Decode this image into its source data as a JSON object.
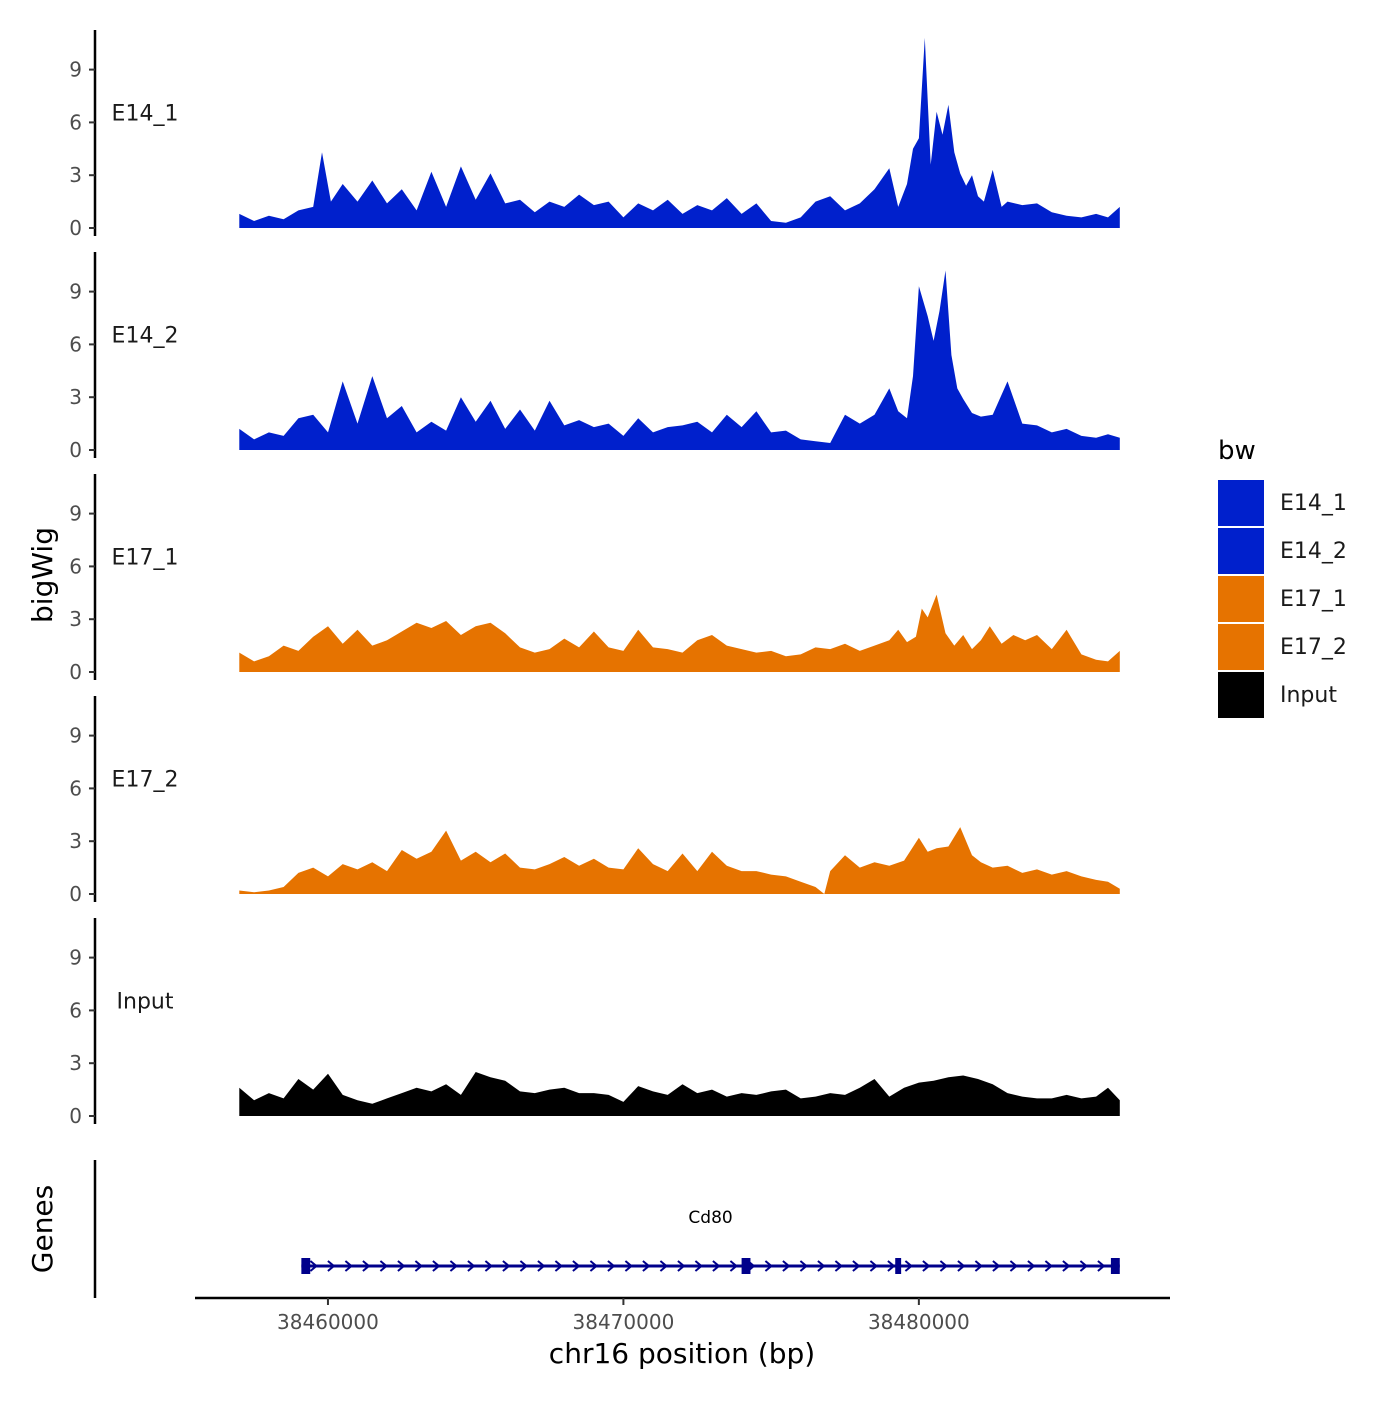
{
  "chart_data": {
    "type": "area",
    "chrom": "chr16",
    "xlabel": "chr16 position (bp)",
    "ylabel": "bigWig",
    "genes_label": "Genes",
    "xlim": [
      38455500,
      38488500
    ],
    "data_xrange": [
      38457000,
      38486800
    ],
    "ylim": [
      0,
      11
    ],
    "yticks": [
      0,
      3,
      6,
      9
    ],
    "xticks": [
      38460000,
      38470000,
      38480000
    ],
    "xtick_labels": [
      "38460000",
      "38470000",
      "38480000"
    ],
    "legend": {
      "title": "bw",
      "entries": [
        {
          "label": "E14_1",
          "color": "#0020cc"
        },
        {
          "label": "E14_2",
          "color": "#0020cc"
        },
        {
          "label": "E17_1",
          "color": "#e67300"
        },
        {
          "label": "E17_2",
          "color": "#e67300"
        },
        {
          "label": "Input",
          "color": "#000000"
        }
      ]
    },
    "series": [
      {
        "name": "E14_1",
        "color": "#0020cc",
        "x": [
          38457000,
          38457500,
          38458000,
          38458500,
          38459000,
          38459500,
          38459800,
          38460100,
          38460500,
          38461000,
          38461500,
          38462000,
          38462500,
          38463000,
          38463500,
          38464000,
          38464500,
          38465000,
          38465500,
          38466000,
          38466500,
          38467000,
          38467500,
          38468000,
          38468500,
          38469000,
          38469500,
          38470000,
          38470500,
          38471000,
          38471500,
          38472000,
          38472500,
          38473000,
          38473500,
          38474000,
          38474500,
          38475000,
          38475500,
          38476000,
          38476500,
          38477000,
          38477500,
          38478000,
          38478500,
          38479000,
          38479300,
          38479600,
          38479800,
          38480000,
          38480200,
          38480400,
          38480600,
          38480800,
          38481000,
          38481200,
          38481400,
          38481600,
          38481800,
          38482000,
          38482200,
          38482500,
          38482800,
          38483000,
          38483500,
          38484000,
          38484500,
          38485000,
          38485500,
          38486000,
          38486400,
          38486800
        ],
        "values": [
          0.8,
          0.4,
          0.7,
          0.5,
          1.0,
          1.2,
          4.3,
          1.5,
          2.5,
          1.5,
          2.7,
          1.4,
          2.2,
          1.0,
          3.2,
          1.2,
          3.5,
          1.6,
          3.1,
          1.4,
          1.6,
          0.9,
          1.5,
          1.2,
          1.9,
          1.3,
          1.5,
          0.6,
          1.4,
          1.0,
          1.6,
          0.8,
          1.3,
          1.0,
          1.7,
          0.8,
          1.4,
          0.4,
          0.3,
          0.6,
          1.5,
          1.8,
          1.0,
          1.4,
          2.2,
          3.4,
          1.2,
          2.5,
          4.5,
          5.1,
          10.8,
          3.6,
          6.6,
          5.3,
          7.0,
          4.3,
          3.1,
          2.4,
          3.0,
          1.8,
          1.5,
          3.3,
          1.2,
          1.5,
          1.3,
          1.4,
          0.9,
          0.7,
          0.6,
          0.8,
          0.6,
          1.2
        ]
      },
      {
        "name": "E14_2",
        "color": "#0020cc",
        "x": [
          38457000,
          38457500,
          38458000,
          38458500,
          38459000,
          38459500,
          38460000,
          38460500,
          38461000,
          38461500,
          38462000,
          38462500,
          38463000,
          38463500,
          38464000,
          38464500,
          38465000,
          38465500,
          38466000,
          38466500,
          38467000,
          38467500,
          38468000,
          38468500,
          38469000,
          38469500,
          38470000,
          38470500,
          38471000,
          38471500,
          38472000,
          38472500,
          38473000,
          38473500,
          38474000,
          38474500,
          38475000,
          38475500,
          38476000,
          38476500,
          38477000,
          38477500,
          38478000,
          38478500,
          38479000,
          38479300,
          38479600,
          38479800,
          38480000,
          38480300,
          38480500,
          38480700,
          38480900,
          38481100,
          38481300,
          38481500,
          38481800,
          38482100,
          38482500,
          38483000,
          38483500,
          38484000,
          38484500,
          38485000,
          38485500,
          38486000,
          38486400,
          38486800
        ],
        "values": [
          1.2,
          0.6,
          1.0,
          0.8,
          1.8,
          2.0,
          1.0,
          3.9,
          1.5,
          4.2,
          1.8,
          2.5,
          1.0,
          1.6,
          1.1,
          3.0,
          1.6,
          2.8,
          1.2,
          2.3,
          1.1,
          2.8,
          1.4,
          1.7,
          1.3,
          1.5,
          0.8,
          1.8,
          1.0,
          1.3,
          1.4,
          1.6,
          1.0,
          2.0,
          1.3,
          2.2,
          1.0,
          1.1,
          0.6,
          0.5,
          0.4,
          2.0,
          1.5,
          2.0,
          3.5,
          2.2,
          1.8,
          4.2,
          9.3,
          7.6,
          6.2,
          7.9,
          10.2,
          5.4,
          3.5,
          2.9,
          2.1,
          1.9,
          2.0,
          3.9,
          1.5,
          1.4,
          1.0,
          1.2,
          0.8,
          0.7,
          0.9,
          0.7
        ]
      },
      {
        "name": "E17_1",
        "color": "#e67300",
        "x": [
          38457000,
          38457500,
          38458000,
          38458500,
          38459000,
          38459500,
          38460000,
          38460500,
          38461000,
          38461500,
          38462000,
          38462500,
          38463000,
          38463500,
          38464000,
          38464500,
          38465000,
          38465500,
          38466000,
          38466500,
          38467000,
          38467500,
          38468000,
          38468500,
          38469000,
          38469500,
          38470000,
          38470500,
          38471000,
          38471500,
          38472000,
          38472500,
          38473000,
          38473500,
          38474000,
          38474500,
          38475000,
          38475500,
          38476000,
          38476500,
          38477000,
          38477500,
          38478000,
          38478500,
          38479000,
          38479300,
          38479600,
          38479900,
          38480100,
          38480300,
          38480600,
          38480900,
          38481200,
          38481500,
          38481800,
          38482100,
          38482400,
          38482800,
          38483200,
          38483600,
          38484000,
          38484500,
          38485000,
          38485500,
          38486000,
          38486400,
          38486800
        ],
        "values": [
          1.1,
          0.6,
          0.9,
          1.5,
          1.2,
          2.0,
          2.6,
          1.6,
          2.4,
          1.5,
          1.8,
          2.3,
          2.8,
          2.5,
          2.9,
          2.1,
          2.6,
          2.8,
          2.2,
          1.4,
          1.1,
          1.3,
          1.9,
          1.4,
          2.3,
          1.4,
          1.2,
          2.4,
          1.4,
          1.3,
          1.1,
          1.8,
          2.1,
          1.5,
          1.3,
          1.1,
          1.2,
          0.9,
          1.0,
          1.4,
          1.3,
          1.6,
          1.2,
          1.5,
          1.8,
          2.4,
          1.7,
          2.0,
          3.6,
          3.1,
          4.4,
          2.2,
          1.5,
          2.1,
          1.3,
          1.8,
          2.6,
          1.6,
          2.1,
          1.8,
          2.1,
          1.3,
          2.4,
          1.0,
          0.7,
          0.6,
          1.2
        ]
      },
      {
        "name": "E17_2",
        "color": "#e67300",
        "x": [
          38457000,
          38457500,
          38458000,
          38458500,
          38459000,
          38459500,
          38460000,
          38460500,
          38461000,
          38461500,
          38462000,
          38462500,
          38463000,
          38463500,
          38464000,
          38464500,
          38465000,
          38465500,
          38466000,
          38466500,
          38467000,
          38467500,
          38468000,
          38468500,
          38469000,
          38469500,
          38470000,
          38470500,
          38471000,
          38471500,
          38472000,
          38472500,
          38473000,
          38473500,
          38474000,
          38474500,
          38475000,
          38475500,
          38476000,
          38476500,
          38476800,
          38477000,
          38477500,
          38478000,
          38478500,
          38479000,
          38479500,
          38480000,
          38480300,
          38480600,
          38481000,
          38481400,
          38481800,
          38482100,
          38482500,
          38483000,
          38483500,
          38484000,
          38484500,
          38485000,
          38485500,
          38486000,
          38486400,
          38486800
        ],
        "values": [
          0.2,
          0.1,
          0.2,
          0.4,
          1.2,
          1.5,
          1.0,
          1.7,
          1.4,
          1.8,
          1.3,
          2.5,
          2.0,
          2.4,
          3.6,
          1.9,
          2.4,
          1.8,
          2.3,
          1.5,
          1.4,
          1.7,
          2.1,
          1.6,
          2.0,
          1.5,
          1.4,
          2.6,
          1.7,
          1.3,
          2.3,
          1.3,
          2.4,
          1.6,
          1.3,
          1.3,
          1.1,
          1.0,
          0.7,
          0.4,
          0.0,
          1.3,
          2.2,
          1.5,
          1.8,
          1.6,
          1.9,
          3.2,
          2.4,
          2.6,
          2.7,
          3.8,
          2.2,
          1.8,
          1.5,
          1.6,
          1.2,
          1.4,
          1.1,
          1.3,
          1.0,
          0.8,
          0.7,
          0.3
        ]
      },
      {
        "name": "Input",
        "color": "#000000",
        "x": [
          38457000,
          38457500,
          38458000,
          38458500,
          38459000,
          38459500,
          38460000,
          38460500,
          38461000,
          38461500,
          38462000,
          38462500,
          38463000,
          38463500,
          38464000,
          38464500,
          38465000,
          38465500,
          38466000,
          38466500,
          38467000,
          38467500,
          38468000,
          38468500,
          38469000,
          38469500,
          38470000,
          38470500,
          38471000,
          38471500,
          38472000,
          38472500,
          38473000,
          38473500,
          38474000,
          38474500,
          38475000,
          38475500,
          38476000,
          38476500,
          38477000,
          38477500,
          38478000,
          38478500,
          38479000,
          38479500,
          38480000,
          38480500,
          38481000,
          38481500,
          38482000,
          38482500,
          38483000,
          38483500,
          38484000,
          38484500,
          38485000,
          38485500,
          38486000,
          38486400,
          38486800
        ],
        "values": [
          1.6,
          0.9,
          1.3,
          1.0,
          2.1,
          1.5,
          2.4,
          1.2,
          0.9,
          0.7,
          1.0,
          1.3,
          1.6,
          1.4,
          1.8,
          1.2,
          2.5,
          2.2,
          2.0,
          1.4,
          1.3,
          1.5,
          1.6,
          1.3,
          1.3,
          1.2,
          0.8,
          1.7,
          1.4,
          1.2,
          1.8,
          1.3,
          1.5,
          1.1,
          1.3,
          1.2,
          1.4,
          1.5,
          1.0,
          1.1,
          1.3,
          1.2,
          1.6,
          2.1,
          1.1,
          1.6,
          1.9,
          2.0,
          2.2,
          2.3,
          2.1,
          1.8,
          1.3,
          1.1,
          1.0,
          1.0,
          1.2,
          1.0,
          1.1,
          1.6,
          0.9
        ]
      }
    ],
    "gene": {
      "name": "Cd80",
      "strand": "+",
      "start": 38459100,
      "end": 38486800,
      "exons": [
        [
          38459100,
          38459400
        ],
        [
          38474000,
          38474300
        ],
        [
          38479200,
          38479400
        ],
        [
          38486500,
          38486800
        ]
      ],
      "color": "#00008b"
    }
  }
}
